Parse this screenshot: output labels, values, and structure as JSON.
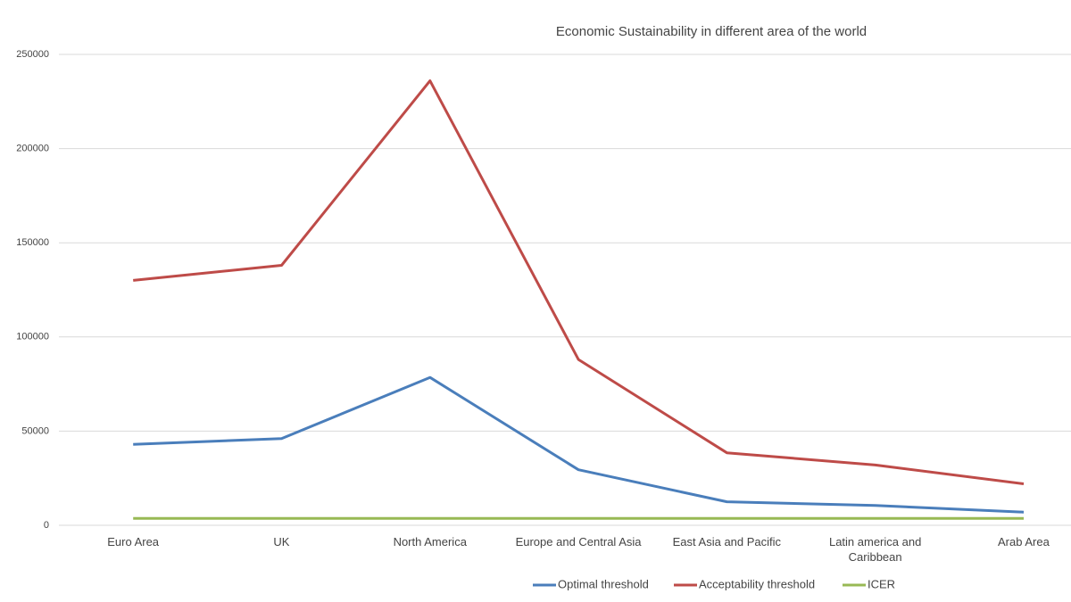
{
  "chart_data": {
    "type": "line",
    "title": "Economic Sustainability in different area of the world",
    "categories": [
      "Euro Area",
      "UK",
      "North America",
      "Europe and Central Asia",
      "East Asia and Pacific",
      "Latin america and Caribbean",
      "Arab Area"
    ],
    "series": [
      {
        "name": "Optimal threshold",
        "color": "#4a7ebb",
        "values": [
          43000,
          46000,
          78500,
          29500,
          12500,
          10500,
          7000
        ]
      },
      {
        "name": "Acceptability threshold",
        "color": "#be4b48",
        "values": [
          130000,
          138000,
          236000,
          88000,
          38500,
          32000,
          22000
        ]
      },
      {
        "name": "ICER",
        "color": "#98b954",
        "values": [
          3700,
          3700,
          3700,
          3700,
          3700,
          3700,
          3700
        ]
      }
    ],
    "ylim": [
      0,
      250000
    ],
    "yticks": [
      0,
      50000,
      100000,
      150000,
      200000,
      250000
    ],
    "grid": true,
    "legend": "bottom"
  }
}
